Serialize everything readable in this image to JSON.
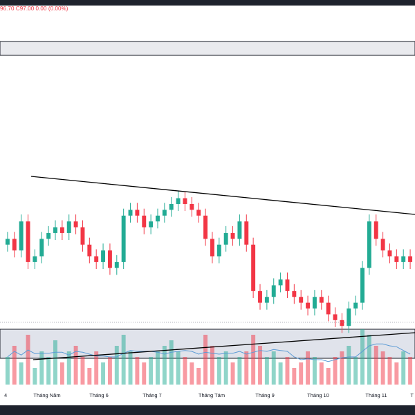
{
  "readout": {
    "text": "96.70  C97.00  0.00 (0.00%)",
    "color": "#f23645"
  },
  "colors": {
    "up": "#22ab94",
    "down": "#f23645",
    "trendline": "#000000",
    "zone_fill": "#e0e3eb",
    "ma_line": "#5b9bd5"
  },
  "chart_data": {
    "type": "candlestick",
    "x_tick_labels": [
      "4",
      "Tháng Năm",
      "Tháng 6",
      "Tháng 7",
      "Tháng Tám",
      "Tháng 9",
      "Tháng 10",
      "Tháng 11",
      "T"
    ],
    "price_series": [
      75,
      73,
      78,
      71,
      72,
      75,
      76,
      77,
      76,
      78,
      77,
      74,
      72,
      71,
      73,
      70,
      71,
      79,
      80,
      79,
      77,
      78,
      79,
      80,
      81,
      82,
      81,
      80,
      79,
      75,
      72,
      74,
      76,
      75,
      78,
      74,
      66,
      64,
      65,
      67,
      68,
      66,
      65,
      64,
      63,
      65,
      64,
      62,
      61,
      60,
      63,
      64,
      70,
      78,
      75,
      73,
      72,
      71,
      72,
      71
    ],
    "volume_series": [
      0.5,
      0.7,
      0.4,
      0.9,
      0.3,
      0.6,
      0.5,
      0.8,
      0.4,
      0.6,
      0.7,
      0.5,
      0.3,
      0.6,
      0.4,
      0.5,
      0.7,
      0.9,
      0.6,
      0.5,
      0.4,
      0.5,
      0.6,
      0.7,
      0.8,
      0.6,
      0.5,
      0.4,
      0.3,
      0.9,
      0.7,
      0.5,
      0.6,
      0.4,
      0.5,
      0.6,
      0.9,
      0.7,
      0.5,
      0.6,
      0.4,
      0.5,
      0.3,
      0.4,
      0.6,
      0.5,
      0.4,
      0.3,
      0.5,
      0.6,
      0.7,
      0.5,
      1.0,
      0.9,
      0.7,
      0.6,
      0.5,
      0.4,
      0.6,
      0.5
    ]
  }
}
